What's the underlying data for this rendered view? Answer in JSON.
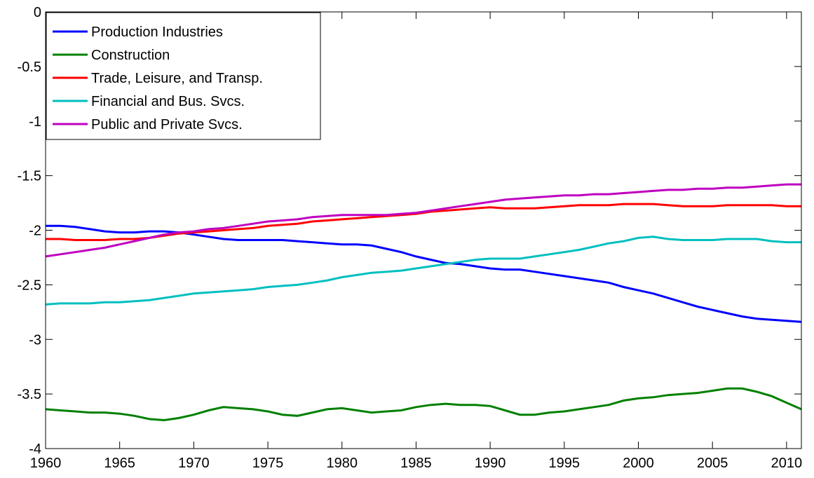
{
  "chart_data": {
    "type": "line",
    "x": [
      1960,
      1961,
      1962,
      1963,
      1964,
      1965,
      1966,
      1967,
      1968,
      1969,
      1970,
      1971,
      1972,
      1973,
      1974,
      1975,
      1976,
      1977,
      1978,
      1979,
      1980,
      1981,
      1982,
      1983,
      1984,
      1985,
      1986,
      1987,
      1988,
      1989,
      1990,
      1991,
      1992,
      1993,
      1994,
      1995,
      1996,
      1997,
      1998,
      1999,
      2000,
      2001,
      2002,
      2003,
      2004,
      2005,
      2006,
      2007,
      2008,
      2009,
      2010,
      2011
    ],
    "series": [
      {
        "name": "Production Industries",
        "color": "#0000ff",
        "values": [
          -1.96,
          -1.96,
          -1.97,
          -1.99,
          -2.01,
          -2.02,
          -2.02,
          -2.01,
          -2.01,
          -2.02,
          -2.04,
          -2.06,
          -2.08,
          -2.09,
          -2.09,
          -2.09,
          -2.09,
          -2.1,
          -2.11,
          -2.12,
          -2.13,
          -2.13,
          -2.14,
          -2.17,
          -2.2,
          -2.24,
          -2.27,
          -2.3,
          -2.31,
          -2.33,
          -2.35,
          -2.36,
          -2.36,
          -2.38,
          -2.4,
          -2.42,
          -2.44,
          -2.46,
          -2.48,
          -2.52,
          -2.55,
          -2.58,
          -2.62,
          -2.66,
          -2.7,
          -2.73,
          -2.76,
          -2.79,
          -2.81,
          -2.82,
          -2.83,
          -2.84
        ]
      },
      {
        "name": "Construction",
        "color": "#008000",
        "values": [
          -3.64,
          -3.65,
          -3.66,
          -3.67,
          -3.67,
          -3.68,
          -3.7,
          -3.73,
          -3.74,
          -3.72,
          -3.69,
          -3.65,
          -3.62,
          -3.63,
          -3.64,
          -3.66,
          -3.69,
          -3.7,
          -3.67,
          -3.64,
          -3.63,
          -3.65,
          -3.67,
          -3.66,
          -3.65,
          -3.62,
          -3.6,
          -3.59,
          -3.6,
          -3.6,
          -3.61,
          -3.65,
          -3.69,
          -3.69,
          -3.67,
          -3.66,
          -3.64,
          -3.62,
          -3.6,
          -3.56,
          -3.54,
          -3.53,
          -3.51,
          -3.5,
          -3.49,
          -3.47,
          -3.45,
          -3.45,
          -3.48,
          -3.52,
          -3.58,
          -3.64
        ]
      },
      {
        "name": "Trade, Leisure, and Transp.",
        "color": "#ff0000",
        "values": [
          -2.08,
          -2.08,
          -2.09,
          -2.09,
          -2.09,
          -2.08,
          -2.08,
          -2.07,
          -2.05,
          -2.03,
          -2.02,
          -2.01,
          -2.0,
          -1.99,
          -1.98,
          -1.96,
          -1.95,
          -1.94,
          -1.92,
          -1.91,
          -1.9,
          -1.89,
          -1.88,
          -1.87,
          -1.86,
          -1.85,
          -1.83,
          -1.82,
          -1.81,
          -1.8,
          -1.79,
          -1.8,
          -1.8,
          -1.8,
          -1.79,
          -1.78,
          -1.77,
          -1.77,
          -1.77,
          -1.76,
          -1.76,
          -1.76,
          -1.77,
          -1.78,
          -1.78,
          -1.78,
          -1.77,
          -1.77,
          -1.77,
          -1.77,
          -1.78,
          -1.78
        ]
      },
      {
        "name": "Financial and Bus. Svcs.",
        "color": "#00bfbf",
        "values": [
          -2.68,
          -2.67,
          -2.67,
          -2.67,
          -2.66,
          -2.66,
          -2.65,
          -2.64,
          -2.62,
          -2.6,
          -2.58,
          -2.57,
          -2.56,
          -2.55,
          -2.54,
          -2.52,
          -2.51,
          -2.5,
          -2.48,
          -2.46,
          -2.43,
          -2.41,
          -2.39,
          -2.38,
          -2.37,
          -2.35,
          -2.33,
          -2.31,
          -2.29,
          -2.27,
          -2.26,
          -2.26,
          -2.26,
          -2.24,
          -2.22,
          -2.2,
          -2.18,
          -2.15,
          -2.12,
          -2.1,
          -2.07,
          -2.06,
          -2.08,
          -2.09,
          -2.09,
          -2.09,
          -2.08,
          -2.08,
          -2.08,
          -2.1,
          -2.11,
          -2.11
        ]
      },
      {
        "name": "Public and Private Svcs.",
        "color": "#bf00bf",
        "values": [
          -2.24,
          -2.22,
          -2.2,
          -2.18,
          -2.16,
          -2.13,
          -2.1,
          -2.07,
          -2.04,
          -2.02,
          -2.01,
          -1.99,
          -1.98,
          -1.96,
          -1.94,
          -1.92,
          -1.91,
          -1.9,
          -1.88,
          -1.87,
          -1.86,
          -1.86,
          -1.86,
          -1.86,
          -1.85,
          -1.84,
          -1.82,
          -1.8,
          -1.78,
          -1.76,
          -1.74,
          -1.72,
          -1.71,
          -1.7,
          -1.69,
          -1.68,
          -1.68,
          -1.67,
          -1.67,
          -1.66,
          -1.65,
          -1.64,
          -1.63,
          -1.63,
          -1.62,
          -1.62,
          -1.61,
          -1.61,
          -1.6,
          -1.59,
          -1.58,
          -1.58
        ]
      }
    ],
    "xlim": [
      1960,
      2011
    ],
    "xticks": [
      1960,
      1965,
      1970,
      1975,
      1980,
      1985,
      1990,
      1995,
      2000,
      2005,
      2010
    ],
    "ylim": [
      -4,
      0
    ],
    "yticks": [
      -4,
      -3.5,
      -3,
      -2.5,
      -2,
      -1.5,
      -1,
      -0.5,
      0
    ],
    "grid": false,
    "legend": "northwest"
  }
}
